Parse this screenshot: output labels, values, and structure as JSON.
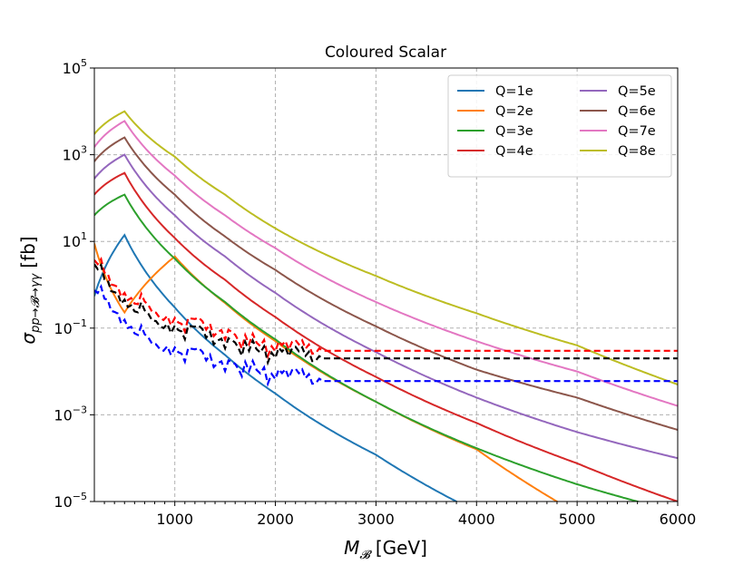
{
  "chart_data": {
    "type": "line",
    "title": "Coloured Scalar",
    "xlabel_symbol": "M",
    "xlabel_sub": "𝓑",
    "xlabel_unit": "[GeV]",
    "ylabel_symbol": "σ",
    "ylabel_sub": "pp→𝓑→γγ",
    "ylabel_unit": "[fb]",
    "y_scale": "log",
    "xlim": [
      200,
      6000
    ],
    "ylim": [
      1e-05,
      100000.0
    ],
    "grid": true,
    "legend_position": "top-right",
    "xticks": [
      1000,
      2000,
      3000,
      4000,
      5000,
      6000
    ],
    "xtick_labels": [
      "1000",
      "2000",
      "3000",
      "4000",
      "5000",
      "6000"
    ],
    "yticks": [
      {
        "base": "10",
        "exp": "5",
        "value": 100000
      },
      {
        "base": "10",
        "exp": "3",
        "value": 1000
      },
      {
        "base": "10",
        "exp": "1",
        "value": 10
      },
      {
        "base": "10",
        "exp": "−1",
        "value": 0.1
      },
      {
        "base": "10",
        "exp": "−3",
        "value": 0.001
      },
      {
        "base": "10",
        "exp": "−5",
        "value": 1e-05
      }
    ],
    "series": [
      {
        "name": "Q=1e",
        "color": "#1f77b4",
        "x": [
          200,
          500,
          1000,
          1500,
          2000,
          3000,
          3800
        ],
        "y": [
          0.55,
          14,
          0.3,
          0.024,
          0.0031,
          0.00012,
          1e-05
        ]
      },
      {
        "name": "Q=2e",
        "color": "#ff7f0e",
        "x": [
          200,
          500,
          1000,
          1500,
          2000,
          3000,
          4000,
          4800
        ],
        "y": [
          9,
          0.23,
          4.5,
          0.38,
          0.05,
          0.002,
          0.00016,
          1e-05
        ]
      },
      {
        "name": "Q=3e",
        "color": "#2ca02c",
        "x": [
          200,
          500,
          1000,
          1500,
          2000,
          3000,
          4000,
          5000,
          5600
        ],
        "y": [
          40,
          120,
          4,
          0.4,
          0.055,
          0.002,
          0.00017,
          2.5e-05,
          1e-05
        ]
      },
      {
        "name": "Q=4e",
        "color": "#d62728",
        "x": [
          200,
          500,
          1000,
          1500,
          2000,
          3000,
          4000,
          5000,
          6000
        ],
        "y": [
          120,
          380,
          12,
          1.3,
          0.18,
          0.0075,
          0.00065,
          7.6e-05,
          1e-05
        ]
      },
      {
        "name": "Q=5e",
        "color": "#9467bd",
        "x": [
          200,
          500,
          1000,
          1500,
          2000,
          3000,
          4000,
          5000,
          6000
        ],
        "y": [
          280,
          1000,
          40,
          4.5,
          0.65,
          0.028,
          0.0025,
          0.0004,
          0.0001
        ]
      },
      {
        "name": "Q=6e",
        "color": "#8c564b",
        "x": [
          200,
          500,
          1000,
          1500,
          2000,
          3000,
          4000,
          5000,
          6000
        ],
        "y": [
          700,
          2500,
          120,
          13,
          2.2,
          0.11,
          0.011,
          0.0025,
          0.00045
        ]
      },
      {
        "name": "Q=7e",
        "color": "#e377c2",
        "x": [
          200,
          500,
          1000,
          1500,
          2000,
          3000,
          4000,
          5000,
          6000
        ],
        "y": [
          1500,
          6000,
          330,
          40,
          7,
          0.4,
          0.05,
          0.01,
          0.0016
        ]
      },
      {
        "name": "Q=8e",
        "color": "#bcbd22",
        "x": [
          200,
          500,
          1000,
          1500,
          2000,
          3000,
          4000,
          5000,
          6000
        ],
        "y": [
          3000,
          10000,
          900,
          120,
          20,
          1.6,
          0.22,
          0.04,
          0.005
        ]
      }
    ],
    "limits": [
      {
        "color": "#ff0000",
        "x": [
          200,
          300,
          500,
          700,
          1000,
          1200,
          1500,
          1700,
          2000,
          2200,
          2400,
          6000
        ],
        "y": [
          5,
          2,
          0.5,
          0.4,
          0.12,
          0.15,
          0.08,
          0.05,
          0.035,
          0.05,
          0.03,
          0.03
        ]
      },
      {
        "color": "#000000",
        "x": [
          200,
          300,
          500,
          700,
          1000,
          1200,
          1500,
          1700,
          2000,
          2200,
          2400,
          6000
        ],
        "y": [
          4,
          1.4,
          0.35,
          0.25,
          0.08,
          0.1,
          0.05,
          0.035,
          0.025,
          0.035,
          0.02,
          0.02
        ]
      },
      {
        "color": "#0000ff",
        "x": [
          200,
          300,
          500,
          700,
          1000,
          1200,
          1500,
          1700,
          2000,
          2200,
          2400,
          6000
        ],
        "y": [
          1,
          0.5,
          0.12,
          0.07,
          0.025,
          0.03,
          0.015,
          0.012,
          0.008,
          0.011,
          0.006,
          0.006
        ]
      }
    ]
  }
}
